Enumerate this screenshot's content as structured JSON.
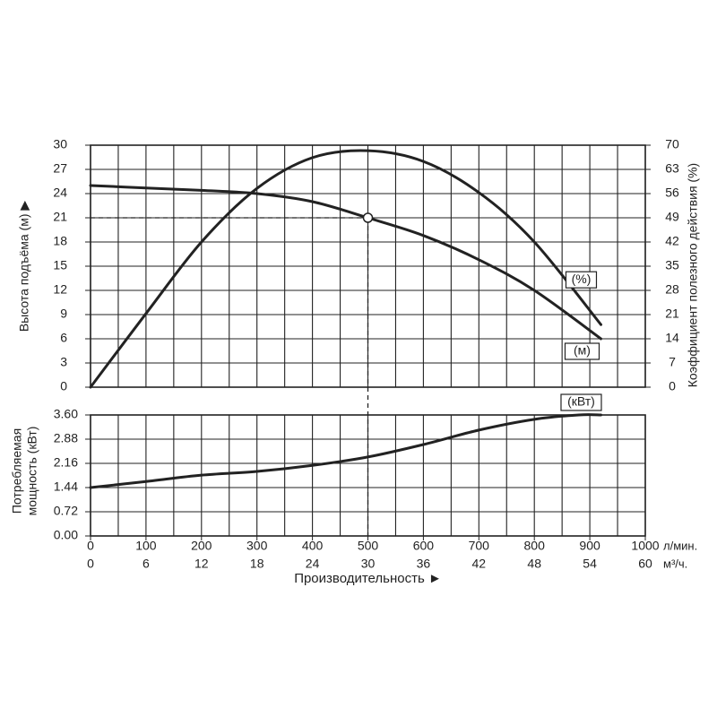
{
  "chart_data": [
    {
      "type": "line",
      "y_label": "Высота подъёма (м) ▶",
      "y2_label": "Коэффициент полезного действия (%)",
      "x": [
        0,
        100,
        200,
        300,
        400,
        500,
        600,
        700,
        800,
        920
      ],
      "xlim": [
        0,
        1000
      ],
      "xticks": [
        0,
        100,
        200,
        300,
        400,
        500,
        600,
        700,
        800,
        900,
        1000
      ],
      "xminorticks": [
        50,
        150,
        250,
        350,
        450,
        550,
        650,
        750,
        850,
        950
      ],
      "ylim": [
        0,
        30
      ],
      "yticks": [
        0,
        3,
        6,
        9,
        12,
        15,
        18,
        21,
        24,
        27,
        30
      ],
      "y2lim": [
        0,
        70
      ],
      "y2ticks": [
        0,
        7,
        14,
        21,
        28,
        35,
        42,
        49,
        56,
        63,
        70
      ],
      "grid": true,
      "series": [
        {
          "name": "(м)",
          "color": "#222222",
          "values": [
            25,
            24.7,
            24.4,
            24.0,
            23.0,
            21.0,
            18.8,
            15.8,
            12.0,
            6.0
          ]
        },
        {
          "name": "(%)",
          "color": "#222222",
          "axis": "y2",
          "values": [
            0,
            21.3,
            42,
            57.5,
            66.4,
            68.4,
            65.3,
            56.3,
            42,
            18.1
          ]
        }
      ],
      "reference": {
        "x": 500,
        "y": 21
      }
    },
    {
      "type": "line",
      "y_label": [
        "Потребляемая",
        "мощность (кВт)"
      ],
      "x_label": "Производительность ►",
      "x_unit": "л/мин.",
      "x2_unit": "м³/ч.",
      "x": [
        0,
        100,
        200,
        300,
        400,
        500,
        600,
        700,
        800,
        880,
        920
      ],
      "xlim": [
        0,
        1000
      ],
      "xticks": [
        0,
        100,
        200,
        300,
        400,
        500,
        600,
        700,
        800,
        900,
        1000
      ],
      "xminorticks": [
        50,
        150,
        250,
        350,
        450,
        550,
        650,
        750,
        850,
        950
      ],
      "x2ticks": [
        0,
        6,
        12,
        18,
        24,
        30,
        36,
        42,
        48,
        54,
        60
      ],
      "ylim": [
        0,
        3.6
      ],
      "yticks": [
        {
          "value": 0,
          "label": "0.00"
        },
        0.72,
        1.44,
        2.16,
        2.88,
        {
          "value": 3.6,
          "label": "3.60"
        }
      ],
      "grid": true,
      "series": [
        {
          "name": "(кВт)",
          "color": "#222222",
          "values": [
            1.44,
            1.62,
            1.81,
            1.92,
            2.1,
            2.35,
            2.72,
            3.15,
            3.47,
            3.6,
            3.6
          ]
        }
      ]
    }
  ]
}
